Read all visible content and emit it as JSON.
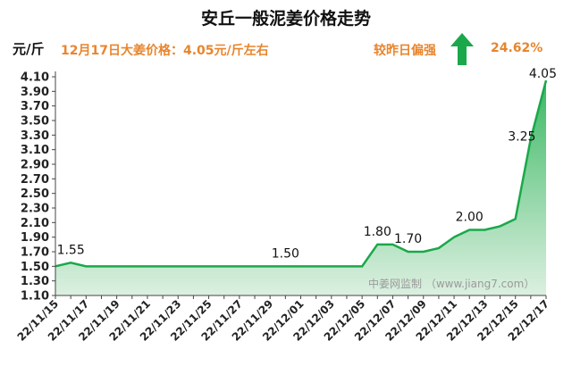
{
  "header": {
    "title": "安丘一般泥姜价格走势",
    "unit": "元/斤",
    "price_note": "12月17日大姜价格：4.05元/斤左右",
    "change_label": "较昨日偏强",
    "change_value": "24.62%",
    "trend_icon": "up-arrow-icon",
    "accent_color": "#e8852d",
    "arrow_color": "#1aa84a"
  },
  "watermark": "中姜网监制 （www.jiang7.com）",
  "chart_data": {
    "type": "area",
    "title": "安丘一般泥姜价格走势",
    "ylabel": "元/斤",
    "ylim": [
      1.1,
      4.1
    ],
    "yticks": [
      "1.10",
      "1.30",
      "1.50",
      "1.70",
      "1.90",
      "2.10",
      "2.30",
      "2.50",
      "2.70",
      "2.90",
      "3.10",
      "3.30",
      "3.50",
      "3.70",
      "3.90",
      "4.10"
    ],
    "x": [
      "22/11/15",
      "22/11/16",
      "22/11/17",
      "22/11/18",
      "22/11/19",
      "22/11/20",
      "22/11/21",
      "22/11/22",
      "22/11/23",
      "22/11/24",
      "22/11/25",
      "22/11/26",
      "22/11/27",
      "22/11/28",
      "22/11/29",
      "22/11/30",
      "22/12/01",
      "22/12/02",
      "22/12/03",
      "22/12/04",
      "22/12/05",
      "22/12/06",
      "22/12/07",
      "22/12/08",
      "22/12/09",
      "22/12/10",
      "22/12/11",
      "22/12/12",
      "22/12/13",
      "22/12/14",
      "22/12/15",
      "22/12/16",
      "22/12/17"
    ],
    "xtick_labels": [
      "22/11/15",
      "22/11/17",
      "22/11/19",
      "22/11/21",
      "22/11/23",
      "22/11/25",
      "22/11/27",
      "22/11/29",
      "22/12/01",
      "22/12/03",
      "22/12/05",
      "22/12/07",
      "22/12/09",
      "22/12/11",
      "22/12/13",
      "22/12/15",
      "22/12/17"
    ],
    "values": [
      1.5,
      1.55,
      1.5,
      1.5,
      1.5,
      1.5,
      1.5,
      1.5,
      1.5,
      1.5,
      1.5,
      1.5,
      1.5,
      1.5,
      1.5,
      1.5,
      1.5,
      1.5,
      1.5,
      1.5,
      1.5,
      1.8,
      1.8,
      1.7,
      1.7,
      1.75,
      1.9,
      2.0,
      2.0,
      2.05,
      2.15,
      3.25,
      4.05
    ],
    "data_labels": [
      {
        "index": 1,
        "text": "1.55"
      },
      {
        "index": 15,
        "text": "1.50"
      },
      {
        "index": 21,
        "text": "1.80"
      },
      {
        "index": 23,
        "text": "1.70"
      },
      {
        "index": 27,
        "text": "2.00"
      },
      {
        "index": 31,
        "text": "3.25"
      },
      {
        "index": 32,
        "text": "4.05"
      }
    ],
    "line_color": "#1aa84a",
    "fill_color": "#2fb45a",
    "grid": false
  }
}
